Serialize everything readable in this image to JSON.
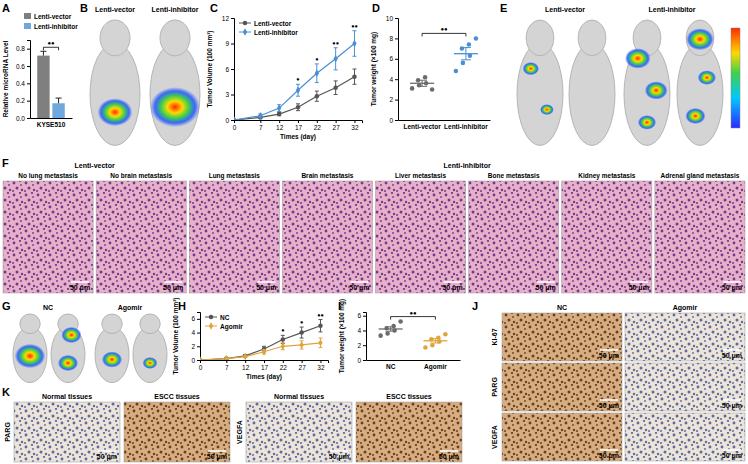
{
  "chart_data": [
    {
      "panel": "A",
      "type": "bar",
      "categories": [
        "KYSE510"
      ],
      "y_label": "Relative microRNA Level",
      "ylim": [
        0,
        0.9
      ],
      "yticks": [
        {
          "value": 0,
          "label": "0.0"
        },
        0.2,
        0.4,
        0.6,
        0.8
      ],
      "series": [
        {
          "name": "Lenti-vector",
          "color": "#7f7f7f",
          "values": [
            0.72
          ],
          "errors": [
            0.05
          ]
        },
        {
          "name": "Lenti-inhibitor",
          "color": "#6fa8dc",
          "values": [
            0.17
          ],
          "errors": [
            0.06
          ]
        }
      ],
      "legend": "top",
      "annotations": [
        {
          "text": "●●"
        }
      ]
    },
    {
      "panel": "C",
      "type": "line",
      "x": [
        0,
        7,
        12,
        17,
        22,
        27,
        32
      ],
      "x_label": "Times (day)",
      "y_label": "Tumor Volume (100 mm³)",
      "xlim": [
        0,
        34
      ],
      "xticks": [
        0,
        7,
        12,
        17,
        22,
        27,
        32
      ],
      "ylim": [
        0,
        12
      ],
      "yticks": [
        0,
        3,
        6,
        9,
        12
      ],
      "legend": "top-left",
      "series": [
        {
          "name": "Lenti-vector",
          "color": "#555555",
          "marker": "circle",
          "values": [
            0,
            0.3,
            0.7,
            1.5,
            2.8,
            3.8,
            5.1
          ],
          "errors": [
            0,
            0.1,
            0.2,
            0.4,
            0.6,
            0.8,
            0.9
          ]
        },
        {
          "name": "Lenti-inhibitor",
          "color": "#4a8fd4",
          "marker": "diamond",
          "values": [
            0,
            0.5,
            1.4,
            3.5,
            5.5,
            7.2,
            9.0
          ],
          "errors": [
            0,
            0.2,
            0.4,
            0.7,
            1.1,
            1.3,
            1.5
          ]
        }
      ],
      "annotations": [
        {
          "x": 17,
          "text": "●"
        },
        {
          "x": 22,
          "text": "●"
        },
        {
          "x": 27,
          "text": "●●"
        },
        {
          "x": 32,
          "text": "●●"
        }
      ]
    },
    {
      "panel": "D",
      "type": "scatter",
      "categories": [
        "Lenti-vector",
        "Lenti-inhibitor"
      ],
      "y_label": "Tumor weight (×100 mg)",
      "ylim": [
        0,
        10
      ],
      "yticks": [
        0,
        2,
        4,
        6,
        8,
        10
      ],
      "colors": [
        "#6b6b6b",
        "#4a8fd4"
      ],
      "marker": "circle",
      "values": [
        [
          3.1,
          3.4,
          3.6,
          3.9,
          4.2,
          3.0
        ],
        [
          4.8,
          5.6,
          6.3,
          7.0,
          7.4,
          8.0
        ]
      ],
      "means": [
        3.6,
        6.5
      ],
      "errors": [
        0.3,
        0.6
      ],
      "annotations": [
        {
          "text": "●●"
        }
      ]
    },
    {
      "panel": "H",
      "type": "line",
      "x": [
        0,
        7,
        12,
        17,
        22,
        27,
        32
      ],
      "x_label": "Times (day)",
      "y_label": "Tumor Volume (100 mm³)",
      "xlim": [
        0,
        34
      ],
      "xticks": [
        0,
        7,
        12,
        17,
        22,
        27,
        32
      ],
      "ylim": [
        0,
        7
      ],
      "yticks": [
        0,
        2,
        4,
        6
      ],
      "legend": "top-left",
      "series": [
        {
          "name": "NC",
          "color": "#555555",
          "marker": "circle",
          "values": [
            0,
            0.2,
            0.6,
            1.6,
            3.0,
            4.0,
            5.0
          ],
          "errors": [
            0,
            0.1,
            0.2,
            0.4,
            0.6,
            0.8,
            0.9
          ]
        },
        {
          "name": "Agomir",
          "color": "#e0a43c",
          "marker": "diamond",
          "values": [
            0,
            0.2,
            0.5,
            1.2,
            2.0,
            2.2,
            2.5
          ],
          "errors": [
            0,
            0.1,
            0.1,
            0.3,
            0.5,
            0.6,
            0.7
          ]
        }
      ],
      "annotations": [
        {
          "x": 22,
          "text": "●"
        },
        {
          "x": 27,
          "text": "●"
        },
        {
          "x": 32,
          "text": "●●"
        }
      ]
    },
    {
      "panel": "I",
      "type": "scatter",
      "categories": [
        "NC",
        "Agomir"
      ],
      "y_label": "Tumor weight (×100 mg)",
      "ylim": [
        0,
        6.5
      ],
      "yticks": [
        0,
        2,
        4,
        6
      ],
      "colors": [
        "#6b6b6b",
        "#e0a43c"
      ],
      "marker": "circle",
      "values": [
        [
          3.3,
          3.6,
          4.0,
          4.3,
          4.6,
          5.2
        ],
        [
          1.7,
          2.0,
          2.5,
          2.8,
          3.0,
          3.5
        ]
      ],
      "means": [
        4.2,
        2.6
      ],
      "errors": [
        0.3,
        0.3
      ],
      "annotations": [
        {
          "text": "●●"
        }
      ]
    }
  ],
  "image_panels": [
    {
      "label": "B",
      "captions": [
        "Lenti-vector",
        "Lenti-inhibitor"
      ]
    },
    {
      "label": "E",
      "captions": [
        "Lenti-vector",
        "Lenti-inhibitor"
      ]
    },
    {
      "label": "F",
      "groups": [
        "Lenti-vector",
        "Lenti-inhibitor"
      ],
      "tiles": [
        "No lung metastasis",
        "No brain metastasis",
        "Lung metastasis",
        "Brain metastasis",
        "Liver metastasis",
        "Bone metastasis",
        "Kidney metastasis",
        "Adrenal gland metastasis"
      ],
      "scale_bar": "50 μm"
    },
    {
      "label": "G",
      "captions": [
        "NC",
        "Agomir"
      ]
    },
    {
      "label": "J",
      "columns": [
        "NC",
        "Agomir"
      ],
      "rows": [
        "KI-67",
        "PARG",
        "VEGFA"
      ],
      "scale_bar": "50 μm"
    },
    {
      "label": "K",
      "groups": [
        {
          "stain": "PARG",
          "tiles": [
            "Normal tissues",
            "ESCC tissues"
          ]
        },
        {
          "stain": "VEGFA",
          "tiles": [
            "Normal tissues",
            "ESCC tissues"
          ]
        }
      ],
      "scale_bar": "50 μm"
    }
  ]
}
